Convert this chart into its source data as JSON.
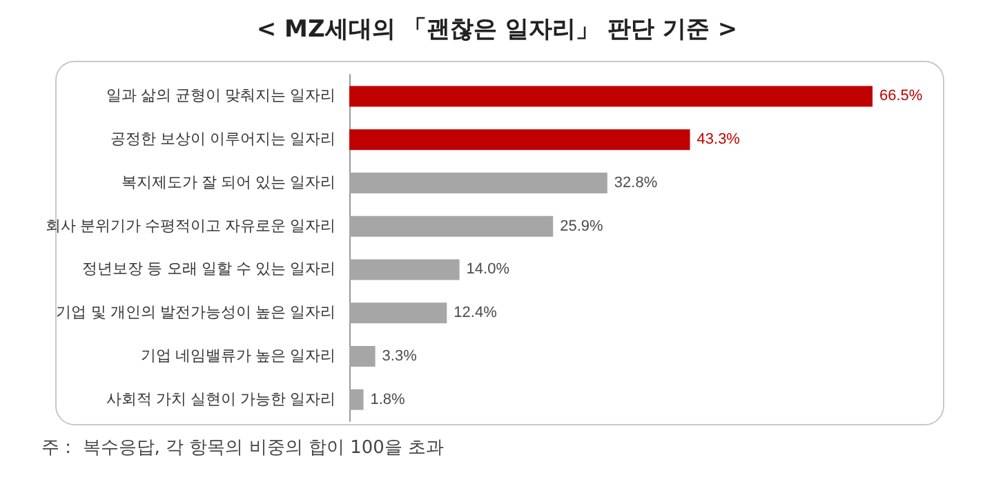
{
  "chart_data": {
    "type": "bar",
    "orientation": "horizontal",
    "title": "< MZ세대의 「괜찮은 일자리」 판단 기준 >",
    "categories": [
      "일과 삶의 균형이 맞춰지는 일자리",
      "공정한 보상이 이루어지는 일자리",
      "복지제도가 잘 되어 있는 일자리",
      "회사 분위기가 수평적이고 자유로운 일자리",
      "정년보장 등 오래 일할 수 있는 일자리",
      "기업 및 개인의 발전가능성이 높은 일자리",
      "기업 네임밸류가 높은 일자리",
      "사회적 가치 실현이 가능한 일자리"
    ],
    "values": [
      66.5,
      43.3,
      32.8,
      25.9,
      14.0,
      12.4,
      3.3,
      1.8
    ],
    "value_labels": [
      "66.5%",
      "43.3%",
      "32.8%",
      "25.9%",
      "14.0%",
      "12.4%",
      "3.3%",
      "1.8%"
    ],
    "colors": [
      "#c00000",
      "#c00000",
      "#a6a6a6",
      "#a6a6a6",
      "#a6a6a6",
      "#a6a6a6",
      "#a6a6a6",
      "#a6a6a6"
    ],
    "annotations": [
      "주 :  복수응답, 각 항목의 비중의 합이 100을 초과"
    ]
  }
}
